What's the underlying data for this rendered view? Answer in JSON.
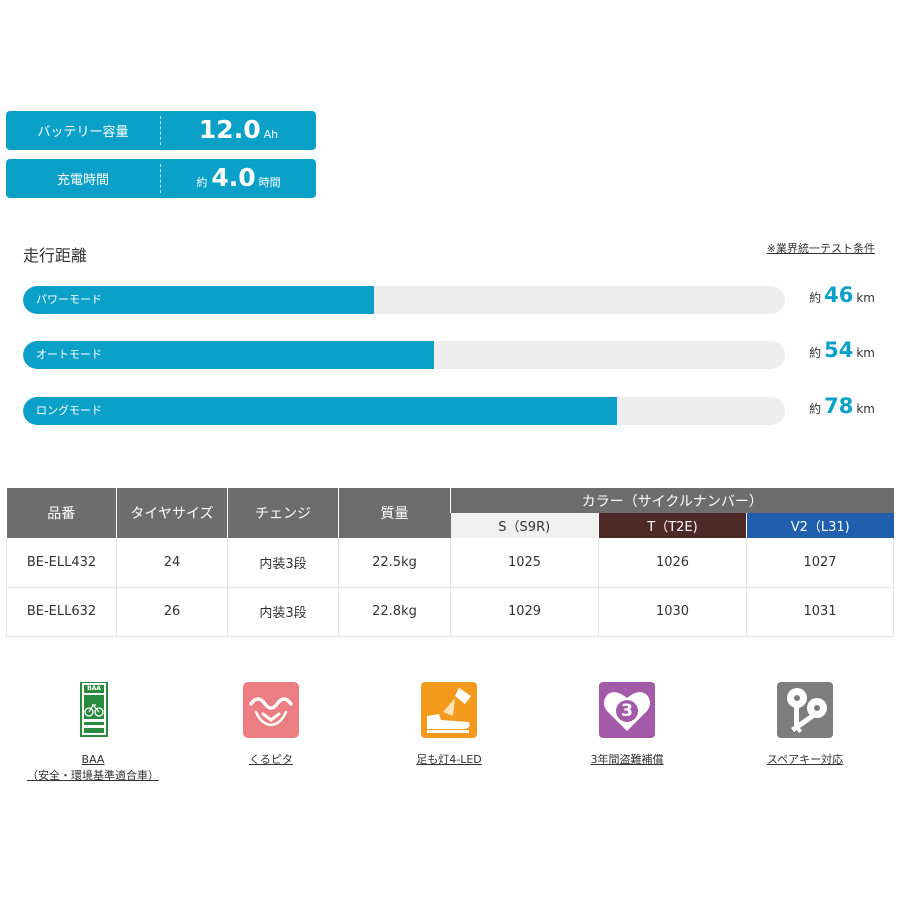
{
  "specs": {
    "battery": {
      "label": "バッテリー容量",
      "value": "12.0",
      "unit": "Ah"
    },
    "charge": {
      "label": "充電時間",
      "prefix": "約",
      "value": "4.0",
      "unit": "時間"
    }
  },
  "range": {
    "title": "走行距離",
    "note": "※業界統一テスト条件",
    "max_km": 100,
    "modes": [
      {
        "label": "パワーモード",
        "prefix": "約",
        "value": 46,
        "unit": "km"
      },
      {
        "label": "オートモード",
        "prefix": "約",
        "value": 54,
        "unit": "km"
      },
      {
        "label": "ロングモード",
        "prefix": "約",
        "value": 78,
        "unit": "km"
      }
    ]
  },
  "table": {
    "headers": {
      "model": "品番",
      "tire": "タイヤサイズ",
      "gear": "チェンジ",
      "weight": "質量",
      "color_group": "カラー（サイクルナンバー）"
    },
    "colors": [
      {
        "name": "S（S9R)",
        "bg": "#f0f0f0",
        "fg": "#333333"
      },
      {
        "name": "T（T2E)",
        "bg": "#4e2a26",
        "fg": "#ffffff"
      },
      {
        "name": "V2（L31)",
        "bg": "#1f5fae",
        "fg": "#ffffff"
      }
    ],
    "rows": [
      {
        "model": "BE-ELL432",
        "tire": "24",
        "gear": "内装3段",
        "weight": "22.5kg",
        "c1": "1025",
        "c2": "1026",
        "c3": "1027"
      },
      {
        "model": "BE-ELL632",
        "tire": "26",
        "gear": "内装3段",
        "weight": "22.8kg",
        "c1": "1029",
        "c2": "1030",
        "c3": "1031"
      }
    ]
  },
  "features": [
    {
      "icon": "baa-icon",
      "label_line1": "BAA",
      "label_line2": "（安全・環境基準適合車）",
      "baa_text": "BAA"
    },
    {
      "icon": "kurupita-icon",
      "label_line1": "くるピタ"
    },
    {
      "icon": "led-light-icon",
      "label_line1": "足も灯4-LED"
    },
    {
      "icon": "theft-compensation-icon",
      "label_line1": "3年間盗難補償",
      "badge": "3"
    },
    {
      "icon": "spare-key-icon",
      "label_line1": "スペアキー対応"
    }
  ],
  "colors": {
    "accent": "#0aa0c8",
    "track": "#eeeeee",
    "table_header": "#6d6d6d"
  }
}
